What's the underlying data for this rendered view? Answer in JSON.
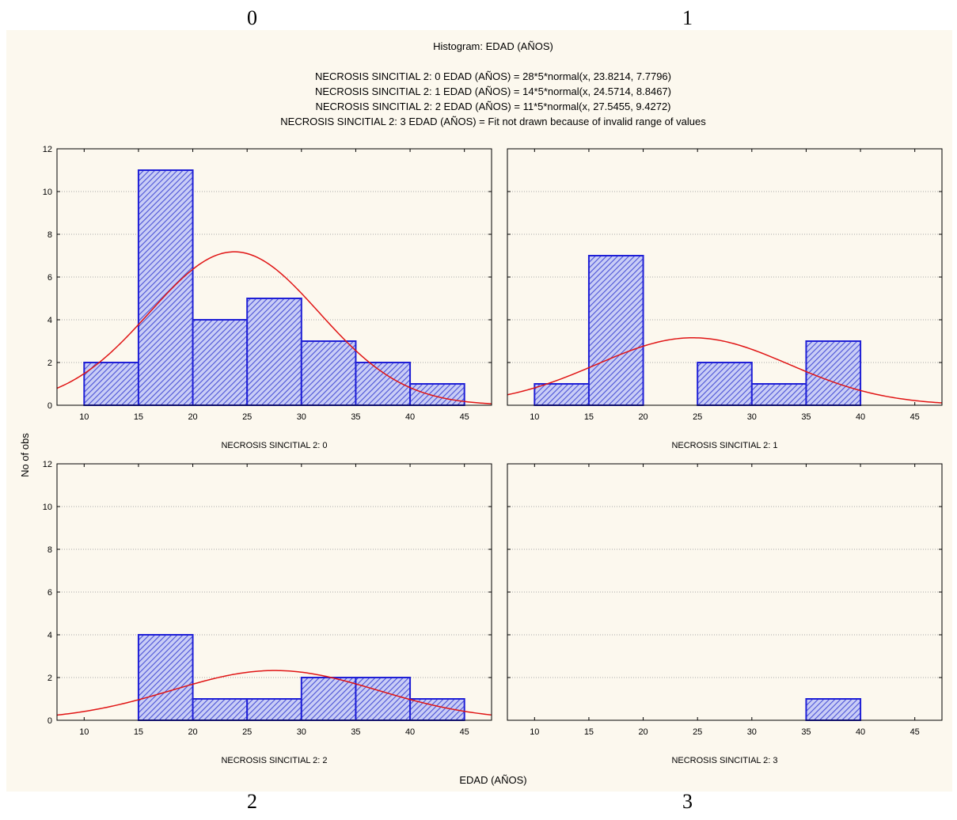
{
  "corner_labels": [
    "0",
    "1",
    "2",
    "3"
  ],
  "colors": {
    "background": "#fcf8ee",
    "bar_fill": "#c9cdf6",
    "bar_hatch": "#4a52d6",
    "bar_stroke": "#1f1fd6",
    "fit_curve": "#e01414",
    "grid": "#a8a8a8"
  },
  "chart_data": {
    "type": "bar",
    "title": "Histogram: EDAD (AÑOS)",
    "subtitle_lines": [
      "NECROSIS SINCITIAL 2: 0 EDAD (AÑOS) = 28*5*normal(x, 23.8214, 7.7796)",
      "NECROSIS SINCITIAL 2: 1 EDAD (AÑOS) = 14*5*normal(x, 24.5714, 8.8467)",
      "NECROSIS SINCITIAL 2: 2 EDAD (AÑOS) = 11*5*normal(x, 27.5455, 9.4272)",
      "NECROSIS SINCITIAL 2: 3 EDAD (AÑOS) = Fit not drawn because of invalid range of values"
    ],
    "xlabel": "EDAD (AÑOS)",
    "ylabel": "No of obs",
    "xlim": [
      7.5,
      47.5
    ],
    "ylim": [
      0,
      12
    ],
    "x_ticks": [
      "10",
      "15",
      "20",
      "25",
      "30",
      "35",
      "40",
      "45"
    ],
    "y_ticks": [
      "0",
      "2",
      "4",
      "6",
      "8",
      "10",
      "12"
    ],
    "bin_width": 5,
    "grid": "horizontal dotted",
    "panels": [
      {
        "label": "NECROSIS SINCITIAL 2: 0",
        "bins": [
          {
            "x0": 10,
            "x1": 15,
            "count": 2
          },
          {
            "x0": 15,
            "x1": 20,
            "count": 11
          },
          {
            "x0": 20,
            "x1": 25,
            "count": 4
          },
          {
            "x0": 25,
            "x1": 30,
            "count": 5
          },
          {
            "x0": 30,
            "x1": 35,
            "count": 3
          },
          {
            "x0": 35,
            "x1": 40,
            "count": 2
          },
          {
            "x0": 40,
            "x1": 45,
            "count": 1
          }
        ],
        "fit": {
          "n": 28,
          "width": 5,
          "mean": 23.8214,
          "sd": 7.7796
        }
      },
      {
        "label": "NECROSIS SINCITIAL 2: 1",
        "bins": [
          {
            "x0": 10,
            "x1": 15,
            "count": 1
          },
          {
            "x0": 15,
            "x1": 20,
            "count": 7
          },
          {
            "x0": 25,
            "x1": 30,
            "count": 2
          },
          {
            "x0": 30,
            "x1": 35,
            "count": 1
          },
          {
            "x0": 35,
            "x1": 40,
            "count": 3
          }
        ],
        "fit": {
          "n": 14,
          "width": 5,
          "mean": 24.5714,
          "sd": 8.8467
        }
      },
      {
        "label": "NECROSIS SINCITIAL 2: 2",
        "bins": [
          {
            "x0": 15,
            "x1": 20,
            "count": 4
          },
          {
            "x0": 20,
            "x1": 25,
            "count": 1
          },
          {
            "x0": 25,
            "x1": 30,
            "count": 1
          },
          {
            "x0": 30,
            "x1": 35,
            "count": 2
          },
          {
            "x0": 35,
            "x1": 40,
            "count": 2
          },
          {
            "x0": 40,
            "x1": 45,
            "count": 1
          }
        ],
        "fit": {
          "n": 11,
          "width": 5,
          "mean": 27.5455,
          "sd": 9.4272
        }
      },
      {
        "label": "NECROSIS SINCITIAL 2: 3",
        "bins": [
          {
            "x0": 35,
            "x1": 40,
            "count": 1
          }
        ],
        "fit": null
      }
    ]
  }
}
